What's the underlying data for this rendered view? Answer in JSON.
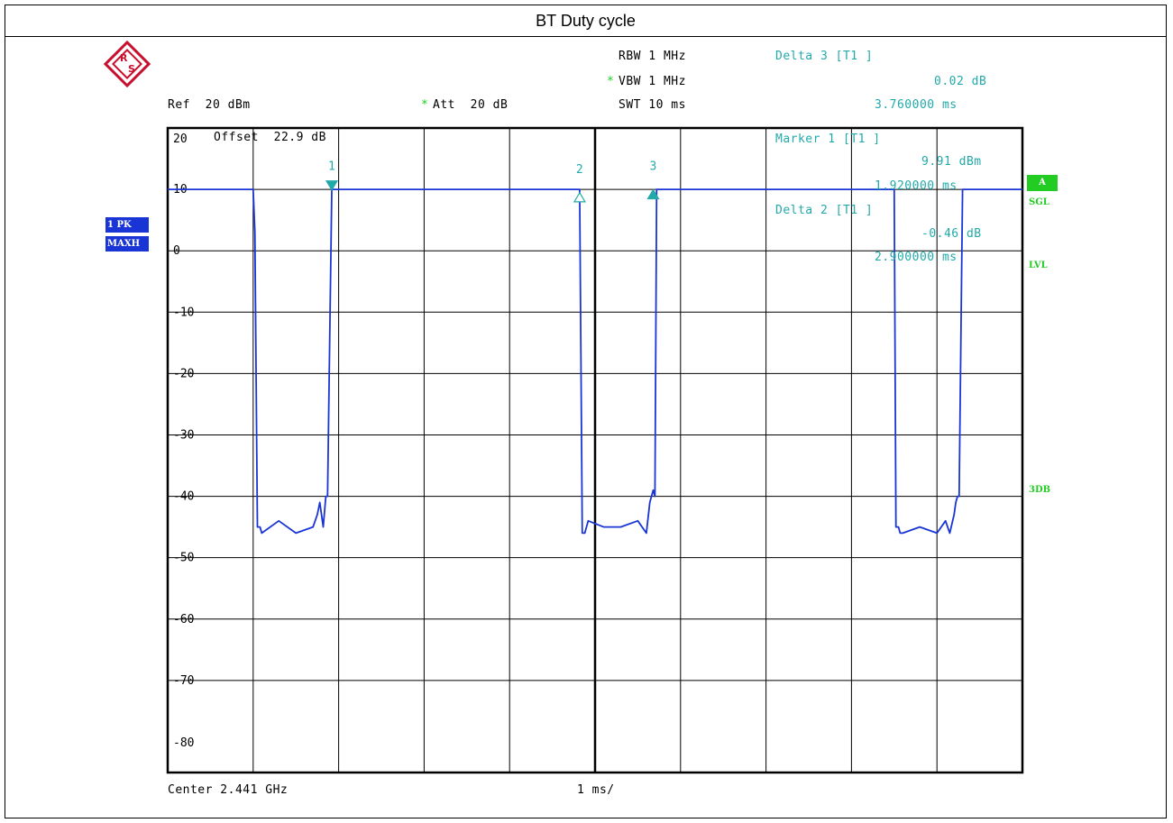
{
  "title": "BT Duty cycle",
  "header": {
    "rbw": "RBW 1 MHz",
    "vbw_star": "*",
    "vbw": "VBW 1 MHz",
    "ref": "Ref  20 dBm",
    "att_star": "*",
    "att": "Att  20 dB",
    "swt": "SWT 10 ms",
    "delta3_title": "Delta 3 [T1 ]",
    "delta3_value": "0.02 dB",
    "delta3_time": "3.760000 ms"
  },
  "plot_annotations": {
    "offset": "Offset  22.9 dB",
    "marker1_title": "Marker 1 [T1 ]",
    "marker1_value": "9.91 dBm",
    "marker1_time": "1.920000 ms",
    "delta2_title": "Delta 2 [T1 ]",
    "delta2_value": "-0.46 dB",
    "delta2_time": "2.900000 ms",
    "marker_labels": [
      "1",
      "2",
      "3"
    ]
  },
  "side_labels": {
    "trace_mode_1": "1 PK",
    "trace_mode_2": "MAXH",
    "a_box": "A",
    "sgl": "SGL",
    "lvl": "LVL",
    "three_db": "3DB"
  },
  "footer": {
    "center": "Center 2.441 GHz",
    "span_div": "1 ms/"
  },
  "colors": {
    "trace": "#1a35d6",
    "marker": "#22a9a9",
    "status": "#22cc22"
  },
  "chart_data": {
    "type": "line",
    "title": "BT Duty cycle",
    "xlabel": "",
    "ylabel": "",
    "xlim": [
      0,
      10
    ],
    "ylim": [
      -85,
      20
    ],
    "x_unit": "ms",
    "y_unit": "dBm",
    "grid": true,
    "yticks": [
      20,
      10,
      0,
      -10,
      -20,
      -30,
      -40,
      -50,
      -60,
      -70,
      -80
    ],
    "ytick_labels": [
      "20",
      "10",
      "0",
      "-10",
      "-20",
      "-30",
      "-40",
      "-50",
      "-60",
      "-70",
      "-80"
    ],
    "series": [
      {
        "x": [
          0,
          1.0,
          1.02,
          1.05,
          1.08,
          1.1,
          1.3,
          1.5,
          1.7,
          1.75,
          1.78,
          1.82,
          1.85,
          1.87,
          1.9,
          1.92,
          2.5,
          3.5,
          4.82,
          4.85,
          4.88,
          4.92,
          5.1,
          5.3,
          5.5,
          5.6,
          5.64,
          5.68,
          5.7,
          5.72,
          5.8,
          6.5,
          7.5,
          8.5,
          8.52,
          8.55,
          8.57,
          8.6,
          8.8,
          9.0,
          9.1,
          9.15,
          9.2,
          9.22,
          9.24,
          9.26,
          9.3,
          10.0
        ],
        "y": [
          10,
          10,
          3,
          -45,
          -45,
          -46,
          -44,
          -46,
          -45,
          -43,
          -41,
          -45,
          -40,
          -40,
          -10,
          10,
          10,
          10,
          10,
          -46,
          -46,
          -44,
          -45,
          -45,
          -44,
          -46,
          -41,
          -39,
          -40,
          10,
          10,
          10,
          10,
          10,
          -45,
          -45,
          -46,
          -46,
          -45,
          -46,
          -44,
          -46,
          -43,
          -41,
          -40,
          -40,
          10,
          10
        ]
      }
    ],
    "markers": [
      {
        "label": "1",
        "x": 1.92,
        "y": 9.91,
        "shape": "down-filled"
      },
      {
        "label": "2",
        "x": 4.82,
        "y": 9.45,
        "shape": "up-open"
      },
      {
        "label": "3",
        "x": 5.68,
        "y": 9.93,
        "shape": "up-filled"
      }
    ]
  }
}
